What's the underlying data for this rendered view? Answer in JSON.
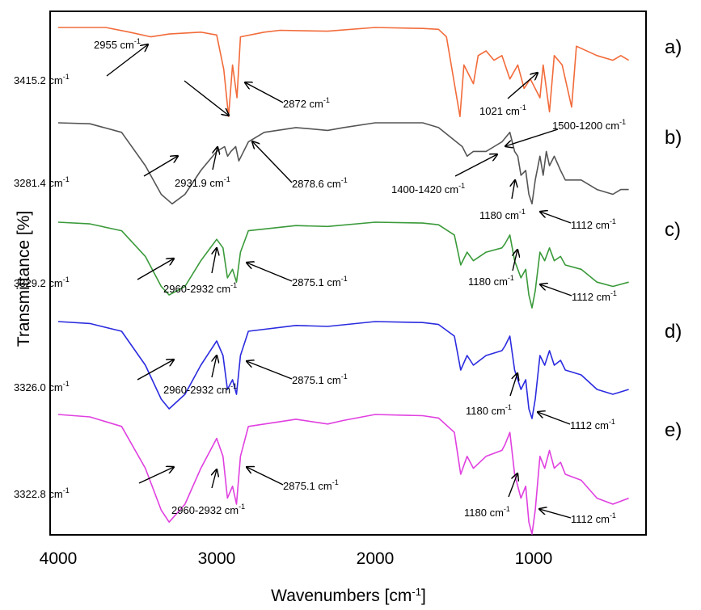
{
  "chart_data": {
    "type": "line",
    "xlabel": "Wavenumbers [cm-1]",
    "xlabel_base": "Wavenumbers [cm",
    "xlabel_sup": "-1",
    "xlabel_close": "]",
    "ylabel": "Transmittance [%]",
    "x_ticks": [
      "4000",
      "3000",
      "2000",
      "1000"
    ],
    "x_tick_values": [
      4000,
      3000,
      2000,
      1000
    ],
    "xlim": [
      4000,
      400
    ],
    "x_reversed": true,
    "grid": false,
    "legend": "none",
    "series": [
      {
        "name": "a)",
        "color": "#F26B3A",
        "baseline_level": 0.05,
        "points": [
          [
            4000,
            0
          ],
          [
            3700,
            0
          ],
          [
            3550,
            0.05
          ],
          [
            3415,
            0.1
          ],
          [
            3300,
            0.07
          ],
          [
            3100,
            0.05
          ],
          [
            3000,
            0.08
          ],
          [
            2955,
            0.45
          ],
          [
            2925,
            0.95
          ],
          [
            2900,
            0.4
          ],
          [
            2872,
            0.75
          ],
          [
            2850,
            0.1
          ],
          [
            2700,
            0.05
          ],
          [
            2600,
            0.03
          ],
          [
            2300,
            0.04
          ],
          [
            2000,
            0.0
          ],
          [
            1700,
            0.01
          ],
          [
            1600,
            0.02
          ],
          [
            1550,
            0.1
          ],
          [
            1465,
            0.95
          ],
          [
            1440,
            0.4
          ],
          [
            1380,
            0.6
          ],
          [
            1350,
            0.3
          ],
          [
            1300,
            0.25
          ],
          [
            1250,
            0.35
          ],
          [
            1200,
            0.3
          ],
          [
            1150,
            0.55
          ],
          [
            1100,
            0.4
          ],
          [
            1060,
            0.65
          ],
          [
            1021,
            0.55
          ],
          [
            960,
            0.75
          ],
          [
            940,
            0.4
          ],
          [
            900,
            0.9
          ],
          [
            870,
            0.3
          ],
          [
            820,
            0.4
          ],
          [
            760,
            0.85
          ],
          [
            730,
            0.2
          ],
          [
            600,
            0.3
          ],
          [
            500,
            0.35
          ],
          [
            450,
            0.3
          ],
          [
            400,
            0.35
          ]
        ]
      },
      {
        "name": "b)",
        "color": "#555555",
        "baseline_level": 0.0,
        "points": [
          [
            4000,
            0
          ],
          [
            3800,
            0.01
          ],
          [
            3600,
            0.1
          ],
          [
            3450,
            0.45
          ],
          [
            3350,
            0.75
          ],
          [
            3281,
            0.85
          ],
          [
            3200,
            0.75
          ],
          [
            3100,
            0.5
          ],
          [
            3000,
            0.3
          ],
          [
            2950,
            0.25
          ],
          [
            2931,
            0.35
          ],
          [
            2910,
            0.3
          ],
          [
            2880,
            0.25
          ],
          [
            2860,
            0.4
          ],
          [
            2800,
            0.2
          ],
          [
            2700,
            0.1
          ],
          [
            2500,
            0.05
          ],
          [
            2300,
            0.08
          ],
          [
            2200,
            0.05
          ],
          [
            2000,
            0.0
          ],
          [
            1700,
            0.0
          ],
          [
            1600,
            0.05
          ],
          [
            1450,
            0.25
          ],
          [
            1420,
            0.35
          ],
          [
            1380,
            0.3
          ],
          [
            1300,
            0.3
          ],
          [
            1250,
            0.25
          ],
          [
            1200,
            0.2
          ],
          [
            1150,
            0.1
          ],
          [
            1120,
            0.3
          ],
          [
            1100,
            0.35
          ],
          [
            1080,
            0.55
          ],
          [
            1050,
            0.5
          ],
          [
            1030,
            0.75
          ],
          [
            1010,
            0.85
          ],
          [
            990,
            0.6
          ],
          [
            960,
            0.35
          ],
          [
            940,
            0.55
          ],
          [
            920,
            0.3
          ],
          [
            900,
            0.45
          ],
          [
            870,
            0.35
          ],
          [
            830,
            0.5
          ],
          [
            800,
            0.6
          ],
          [
            700,
            0.6
          ],
          [
            600,
            0.7
          ],
          [
            500,
            0.75
          ],
          [
            450,
            0.7
          ],
          [
            400,
            0.7
          ]
        ]
      },
      {
        "name": "c)",
        "color": "#3A9A3A",
        "baseline_level": 0.0,
        "points": [
          [
            4000,
            0
          ],
          [
            3800,
            0.02
          ],
          [
            3600,
            0.1
          ],
          [
            3450,
            0.4
          ],
          [
            3350,
            0.75
          ],
          [
            3300,
            0.85
          ],
          [
            3200,
            0.75
          ],
          [
            3100,
            0.45
          ],
          [
            3000,
            0.2
          ],
          [
            2960,
            0.3
          ],
          [
            2932,
            0.65
          ],
          [
            2900,
            0.55
          ],
          [
            2875,
            0.7
          ],
          [
            2850,
            0.35
          ],
          [
            2800,
            0.1
          ],
          [
            2500,
            0.04
          ],
          [
            2300,
            0.05
          ],
          [
            2000,
            0.0
          ],
          [
            1700,
            0.01
          ],
          [
            1600,
            0.03
          ],
          [
            1500,
            0.15
          ],
          [
            1460,
            0.5
          ],
          [
            1420,
            0.35
          ],
          [
            1380,
            0.45
          ],
          [
            1300,
            0.35
          ],
          [
            1200,
            0.3
          ],
          [
            1180,
            0.25
          ],
          [
            1150,
            0.15
          ],
          [
            1120,
            0.45
          ],
          [
            1080,
            0.65
          ],
          [
            1050,
            0.55
          ],
          [
            1030,
            0.85
          ],
          [
            1010,
            1.0
          ],
          [
            990,
            0.8
          ],
          [
            960,
            0.35
          ],
          [
            930,
            0.45
          ],
          [
            900,
            0.3
          ],
          [
            870,
            0.45
          ],
          [
            830,
            0.4
          ],
          [
            800,
            0.5
          ],
          [
            700,
            0.55
          ],
          [
            600,
            0.7
          ],
          [
            500,
            0.75
          ],
          [
            400,
            0.7
          ]
        ]
      },
      {
        "name": "d)",
        "color": "#2B2BE0",
        "baseline_level": 0.0,
        "points": [
          [
            4000,
            0
          ],
          [
            3800,
            0.02
          ],
          [
            3600,
            0.1
          ],
          [
            3450,
            0.45
          ],
          [
            3350,
            0.8
          ],
          [
            3300,
            0.9
          ],
          [
            3200,
            0.75
          ],
          [
            3100,
            0.45
          ],
          [
            3000,
            0.2
          ],
          [
            2960,
            0.35
          ],
          [
            2932,
            0.7
          ],
          [
            2900,
            0.6
          ],
          [
            2875,
            0.75
          ],
          [
            2850,
            0.35
          ],
          [
            2800,
            0.1
          ],
          [
            2500,
            0.04
          ],
          [
            2300,
            0.05
          ],
          [
            2000,
            0.0
          ],
          [
            1700,
            0.01
          ],
          [
            1600,
            0.03
          ],
          [
            1500,
            0.15
          ],
          [
            1460,
            0.5
          ],
          [
            1420,
            0.35
          ],
          [
            1380,
            0.45
          ],
          [
            1300,
            0.35
          ],
          [
            1200,
            0.3
          ],
          [
            1180,
            0.25
          ],
          [
            1150,
            0.15
          ],
          [
            1120,
            0.5
          ],
          [
            1080,
            0.7
          ],
          [
            1050,
            0.6
          ],
          [
            1030,
            0.9
          ],
          [
            1010,
            1.0
          ],
          [
            990,
            0.8
          ],
          [
            960,
            0.35
          ],
          [
            930,
            0.45
          ],
          [
            900,
            0.3
          ],
          [
            870,
            0.45
          ],
          [
            830,
            0.4
          ],
          [
            800,
            0.5
          ],
          [
            700,
            0.55
          ],
          [
            600,
            0.7
          ],
          [
            500,
            0.75
          ],
          [
            400,
            0.7
          ]
        ]
      },
      {
        "name": "e)",
        "color": "#E040E0",
        "baseline_level": 0.0,
        "points": [
          [
            4000,
            0
          ],
          [
            3800,
            0.02
          ],
          [
            3600,
            0.1
          ],
          [
            3450,
            0.45
          ],
          [
            3350,
            0.8
          ],
          [
            3300,
            0.9
          ],
          [
            3200,
            0.75
          ],
          [
            3100,
            0.45
          ],
          [
            3000,
            0.2
          ],
          [
            2960,
            0.35
          ],
          [
            2932,
            0.7
          ],
          [
            2900,
            0.6
          ],
          [
            2875,
            0.75
          ],
          [
            2850,
            0.35
          ],
          [
            2800,
            0.1
          ],
          [
            2500,
            0.04
          ],
          [
            2300,
            0.08
          ],
          [
            2200,
            0.05
          ],
          [
            2000,
            0.0
          ],
          [
            1700,
            0.01
          ],
          [
            1600,
            0.03
          ],
          [
            1500,
            0.15
          ],
          [
            1460,
            0.5
          ],
          [
            1420,
            0.35
          ],
          [
            1380,
            0.45
          ],
          [
            1300,
            0.35
          ],
          [
            1200,
            0.3
          ],
          [
            1180,
            0.25
          ],
          [
            1150,
            0.15
          ],
          [
            1120,
            0.5
          ],
          [
            1080,
            0.7
          ],
          [
            1050,
            0.6
          ],
          [
            1030,
            0.9
          ],
          [
            1010,
            1.0
          ],
          [
            990,
            0.8
          ],
          [
            960,
            0.35
          ],
          [
            930,
            0.45
          ],
          [
            900,
            0.3
          ],
          [
            870,
            0.45
          ],
          [
            830,
            0.4
          ],
          [
            800,
            0.5
          ],
          [
            700,
            0.55
          ],
          [
            600,
            0.7
          ],
          [
            500,
            0.75
          ],
          [
            400,
            0.7
          ]
        ]
      }
    ],
    "annotations": [
      {
        "series": "a)",
        "text": "3415.2",
        "unit": "cm",
        "sup": "-1"
      },
      {
        "series": "a)",
        "text": "2955",
        "unit": "cm",
        "sup": "-1"
      },
      {
        "series": "a)",
        "text": "2872",
        "unit": "cm",
        "sup": "-1"
      },
      {
        "series": "a)",
        "text": "1021",
        "unit": "cm",
        "sup": "-1"
      },
      {
        "series": "b)",
        "text": "3281.4",
        "unit": "cm",
        "sup": "-1"
      },
      {
        "series": "b)",
        "text": "2931.9",
        "unit": "cm",
        "sup": "-1"
      },
      {
        "series": "b)",
        "text": "2878.6",
        "unit": "cm",
        "sup": "-1"
      },
      {
        "series": "b)",
        "text": "1400-1420",
        "unit": "cm",
        "sup": "-1"
      },
      {
        "series": "b)",
        "text": "1500-1200",
        "unit": "cm",
        "sup": "-1"
      },
      {
        "series": "b)",
        "text": "1180",
        "unit": "cm",
        "sup": "-1"
      },
      {
        "series": "b)",
        "text": "1112",
        "unit": "cm",
        "sup": "-1"
      },
      {
        "series": "c)",
        "text": "3329.2",
        "unit": "cm",
        "sup": "-1"
      },
      {
        "series": "c)",
        "text": "2960-2932",
        "unit": "cm",
        "sup": "-1"
      },
      {
        "series": "c)",
        "text": "2875.1",
        "unit": "cm",
        "sup": "-1"
      },
      {
        "series": "c)",
        "text": "1180",
        "unit": "cm",
        "sup": "-1"
      },
      {
        "series": "c)",
        "text": "1112",
        "unit": "cm",
        "sup": "-1"
      },
      {
        "series": "d)",
        "text": "3326.0",
        "unit": "cm",
        "sup": "-1"
      },
      {
        "series": "d)",
        "text": "2960-2932",
        "unit": "cm",
        "sup": "-1"
      },
      {
        "series": "d)",
        "text": "2875.1",
        "unit": "cm",
        "sup": "-1"
      },
      {
        "series": "d)",
        "text": "1180",
        "unit": "cm",
        "sup": "-1"
      },
      {
        "series": "d)",
        "text": "1112",
        "unit": "cm",
        "sup": "-1"
      },
      {
        "series": "e)",
        "text": "3322.8",
        "unit": "cm",
        "sup": "-1"
      },
      {
        "series": "e)",
        "text": "2960-2932",
        "unit": "cm",
        "sup": "-1"
      },
      {
        "series": "e)",
        "text": "2875.1",
        "unit": "cm",
        "sup": "-1"
      },
      {
        "series": "e)",
        "text": "1180",
        "unit": "cm",
        "sup": "-1"
      },
      {
        "series": "e)",
        "text": "1112",
        "unit": "cm",
        "sup": "-1"
      }
    ]
  }
}
